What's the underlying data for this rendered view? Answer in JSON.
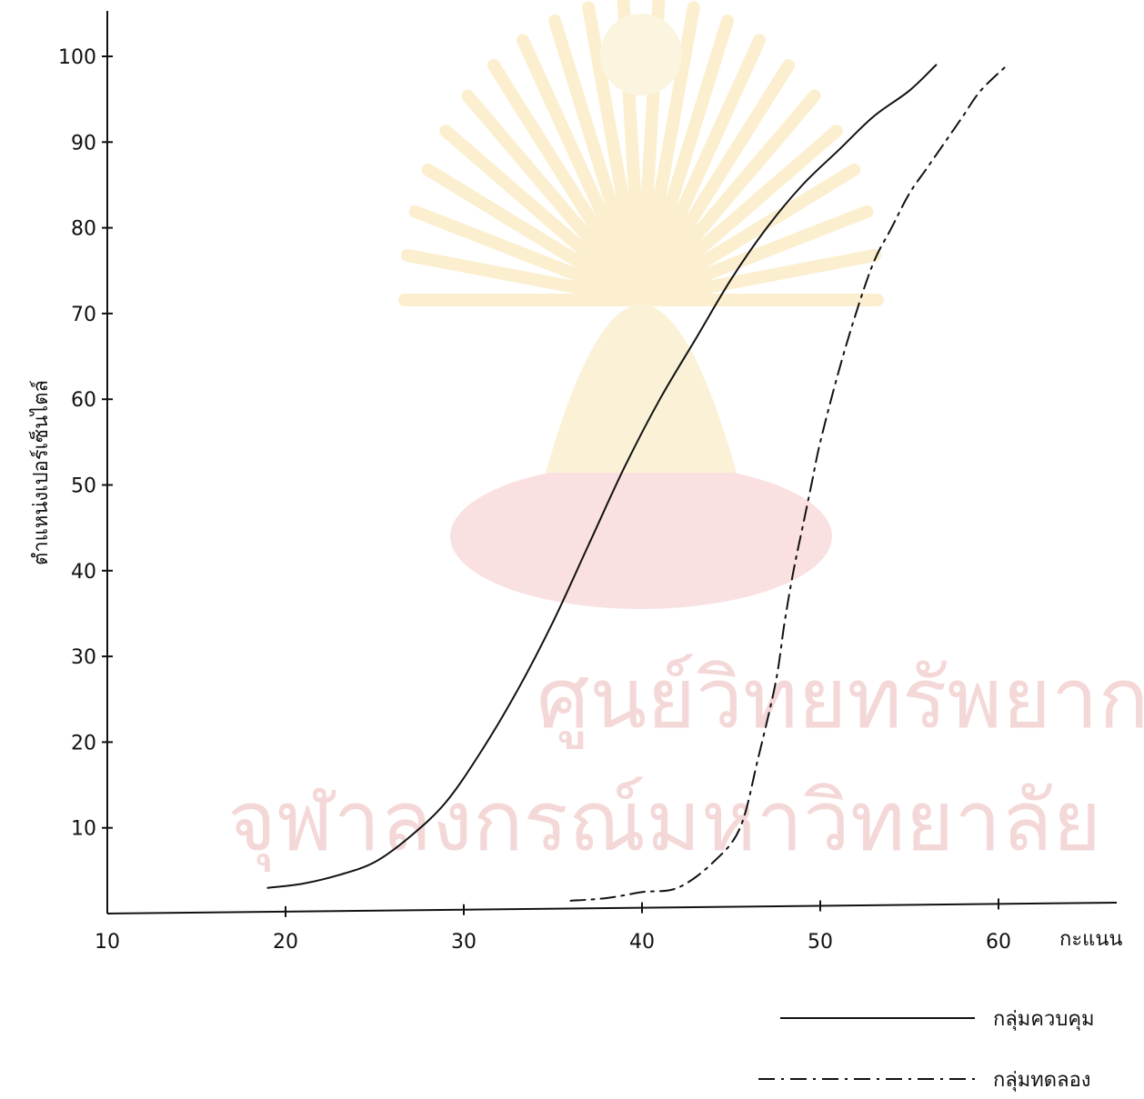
{
  "chart_data": {
    "type": "line",
    "title": "",
    "xlabel": "กะแนน",
    "ylabel": "ตำแหน่งเปอร์เซ็นไตล์",
    "xlim": [
      10,
      60
    ],
    "ylim": [
      0,
      100
    ],
    "xticks": [
      10,
      20,
      30,
      40,
      50,
      60
    ],
    "yticks": [
      10,
      20,
      30,
      40,
      50,
      60,
      70,
      80,
      90,
      100
    ],
    "grid": false,
    "legend_position": "bottom-right",
    "series": [
      {
        "name": "กลุ่มควบคุม",
        "line_style": "solid",
        "color": "#111111",
        "x": [
          19,
          21,
          23,
          25,
          27,
          29,
          31,
          33,
          35,
          37,
          39,
          41,
          43,
          45,
          47,
          49,
          51,
          53,
          55,
          56.5
        ],
        "y": [
          3,
          3.5,
          4.5,
          6,
          9,
          13,
          19,
          26,
          34,
          43,
          52,
          60,
          67,
          74,
          80,
          85,
          89,
          93,
          96,
          99
        ]
      },
      {
        "name": "กลุ่มทดลอง",
        "line_style": "dashdot",
        "color": "#111111",
        "x": [
          36,
          38,
          40,
          42,
          44,
          45.5,
          46.5,
          47.5,
          48,
          48.5,
          49,
          49.5,
          50,
          51,
          52,
          53,
          54,
          55,
          56,
          57,
          58,
          59,
          60.5
        ],
        "y": [
          1.5,
          1.8,
          2.5,
          3,
          6,
          10,
          18,
          27,
          34,
          40,
          45,
          50,
          55,
          63,
          70,
          76,
          80,
          84,
          87,
          90,
          93,
          96,
          99
        ]
      }
    ]
  },
  "watermark": {
    "line1": "ศูนย์วิทยทรัพยากร",
    "line2": "จุฬาลงกรณ์มหาวิทยาลัย",
    "color": "#f4d8d8"
  }
}
